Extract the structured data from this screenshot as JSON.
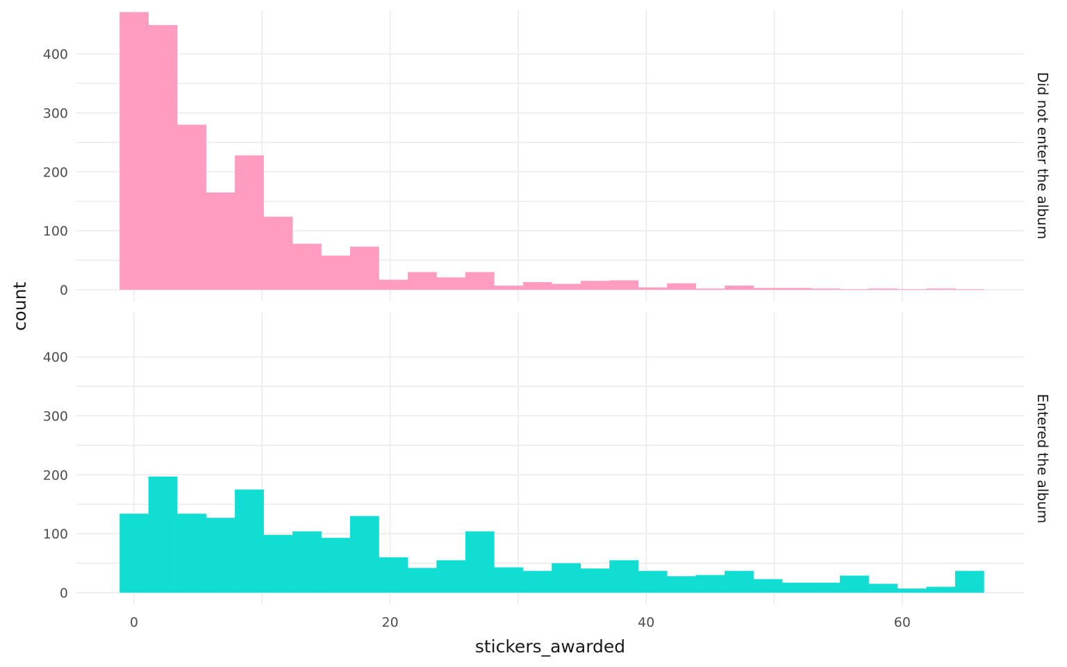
{
  "chart_data": {
    "type": "bar",
    "subtype": "faceted histogram",
    "xlabel": "stickers_awarded",
    "ylabel": "count",
    "x_ticks": [
      0,
      20,
      40,
      60
    ],
    "y_ticks": [
      0,
      100,
      200,
      300,
      400
    ],
    "xlim": [
      -4.5,
      69.5
    ],
    "ylim": [
      -20,
      475
    ],
    "bin_edges": [
      -1.125,
      1.125,
      3.375,
      5.625,
      7.875,
      10.125,
      12.375,
      14.625,
      16.875,
      19.125,
      21.375,
      23.625,
      25.875,
      28.125,
      30.375,
      32.625,
      34.875,
      37.125,
      39.375,
      41.625,
      43.875,
      46.125,
      48.375,
      50.625,
      52.875,
      55.125,
      57.375,
      59.625,
      61.875,
      64.125,
      66.375
    ],
    "grid": true,
    "facets": [
      {
        "label": "Did not enter the album",
        "color": "#ff9cc0",
        "counts": [
          471,
          449,
          280,
          165,
          228,
          124,
          78,
          58,
          73,
          17,
          30,
          21,
          30,
          7,
          13,
          10,
          15,
          16,
          4,
          11,
          2,
          7,
          3,
          3,
          2,
          1,
          2,
          1,
          2,
          1
        ]
      },
      {
        "label": "Entered the album",
        "color": "#11ddd3",
        "counts": [
          134,
          197,
          134,
          127,
          175,
          98,
          104,
          93,
          130,
          60,
          42,
          55,
          104,
          43,
          37,
          50,
          41,
          55,
          37,
          28,
          30,
          37,
          23,
          17,
          17,
          29,
          15,
          7,
          10,
          37
        ]
      }
    ]
  }
}
